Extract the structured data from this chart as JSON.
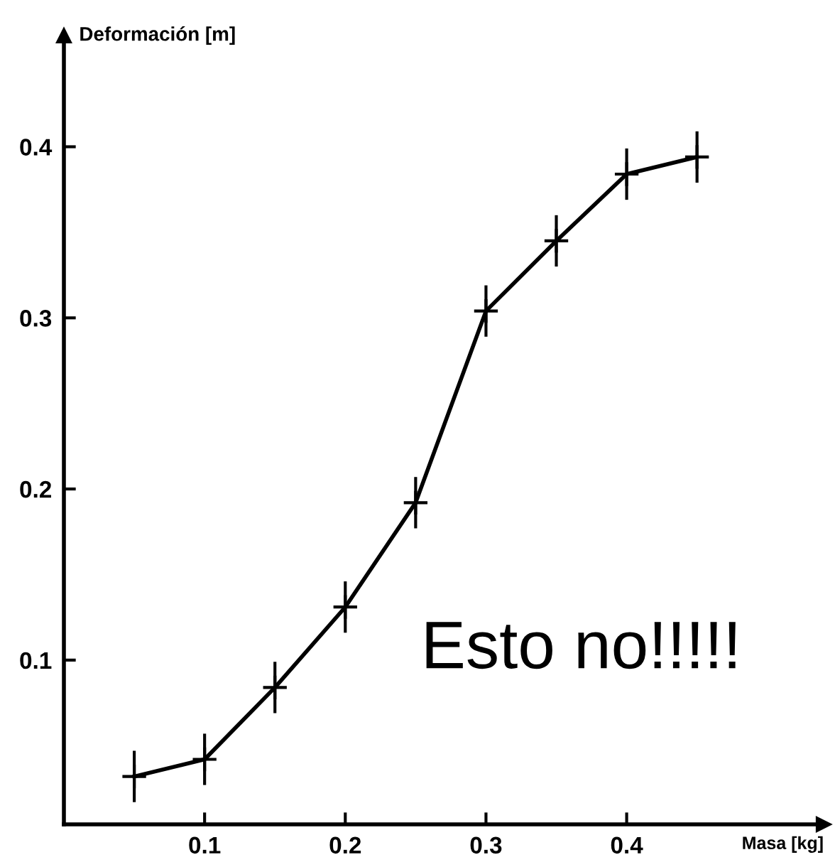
{
  "chart_data": {
    "type": "line",
    "xlabel": "Masa [kg]",
    "ylabel": "Deformación [m]",
    "x": [
      0.05,
      0.1,
      0.15,
      0.2,
      0.25,
      0.3,
      0.35,
      0.4,
      0.45
    ],
    "series": [
      {
        "color": "#000000",
        "values": [
          0.032,
          0.042,
          0.084,
          0.131,
          0.192,
          0.304,
          0.345,
          0.384,
          0.394
        ],
        "errors": [
          0.015,
          0.015,
          0.015,
          0.015,
          0.015,
          0.015,
          0.015,
          0.015,
          0.015
        ]
      }
    ],
    "xlim": [
      0,
      0.54
    ],
    "ylim": [
      0.004,
      0.465
    ],
    "xticks": [
      0.1,
      0.2,
      0.3,
      0.4
    ],
    "yticks": [
      0.1,
      0.2,
      0.3,
      0.4
    ],
    "marker": "cross",
    "line_style": "solid",
    "grid": false,
    "legend": false,
    "annotations": [
      "Esto no!!!!!"
    ]
  }
}
